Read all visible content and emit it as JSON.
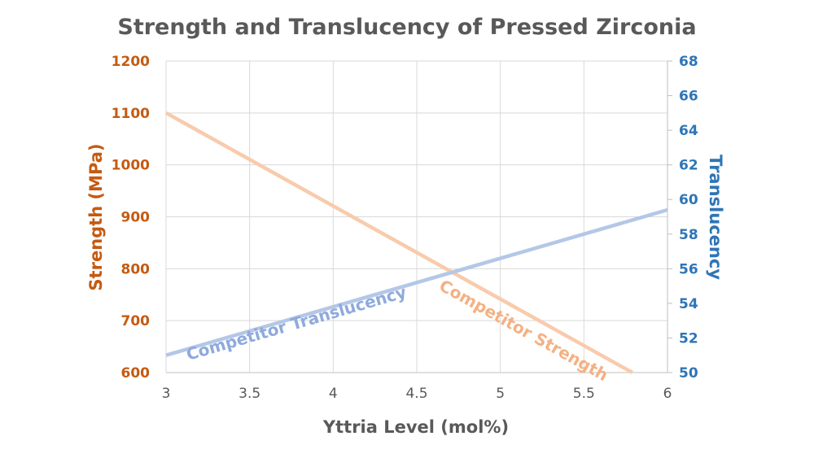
{
  "chart_data": {
    "type": "line",
    "title": "Strength and Translucency of Pressed Zirconia",
    "xlabel": "Yttria Level (mol%)",
    "ylabel_left": "Strength (MPa)",
    "ylabel_right": "Translucency",
    "xlim": [
      3,
      6
    ],
    "ylim_left": [
      600,
      1200
    ],
    "ylim_right": [
      50,
      68
    ],
    "x_ticks": [
      "3",
      "3.5",
      "4",
      "4.5",
      "5",
      "5.5",
      "6"
    ],
    "y_ticks_left": [
      "600",
      "700",
      "800",
      "900",
      "1000",
      "1100",
      "1200"
    ],
    "y_ticks_right": [
      "50",
      "52",
      "54",
      "56",
      "58",
      "60",
      "62",
      "64",
      "66",
      "68"
    ],
    "grid": true,
    "series": [
      {
        "name": "Competitor Strength",
        "axis": "left",
        "color": "#f8cbad",
        "label_color": "#f4b183",
        "x": [
          3,
          5.79
        ],
        "y": [
          1100,
          600
        ]
      },
      {
        "name": "Competitor Translucency",
        "axis": "right",
        "color": "#b4c7e7",
        "label_color": "#8faadc",
        "x": [
          3,
          6
        ],
        "y": [
          51,
          59.4
        ]
      }
    ],
    "colors": {
      "left_axis": "#c55a11",
      "right_axis": "#2e75b6",
      "title": "#595959"
    }
  }
}
